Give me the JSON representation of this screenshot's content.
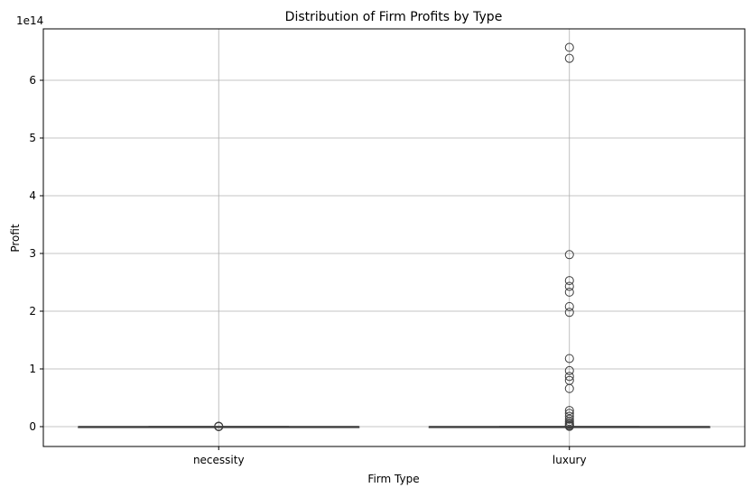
{
  "chart_data": {
    "type": "box",
    "title": "Distribution of Firm Profits by Type",
    "xlabel": "Firm Type",
    "ylabel": "Profit",
    "y_offset_text": "1e14",
    "y_scale_factor": 100000000000000.0,
    "ylim": [
      -0.35,
      6.85
    ],
    "yticks": [
      0,
      1,
      2,
      3,
      4,
      5,
      6
    ],
    "grid": true,
    "categories": [
      "necessity",
      "luxury"
    ],
    "boxes": [
      {
        "category": "necessity",
        "whisker_low": 0,
        "q1": 0,
        "median": 0,
        "q3": 0,
        "whisker_high": 0,
        "outliers": [
          0,
          0.002,
          0.004,
          0.006,
          0.008
        ]
      },
      {
        "category": "luxury",
        "whisker_low": 0,
        "q1": 0,
        "median": 0,
        "q3": 0,
        "whisker_high": 0,
        "outliers": [
          6.57,
          6.38,
          2.98,
          2.53,
          2.43,
          2.33,
          2.08,
          1.98,
          1.18,
          0.97,
          0.87,
          0.8,
          0.66,
          0.28,
          0.23,
          0.18,
          0.13,
          0.09,
          0.06,
          0.04,
          0.02,
          0.01,
          0.005
        ]
      }
    ]
  },
  "colors": {
    "box_line": "#3f3f3f",
    "grid": "#b0b0b0",
    "axis": "#000000"
  }
}
